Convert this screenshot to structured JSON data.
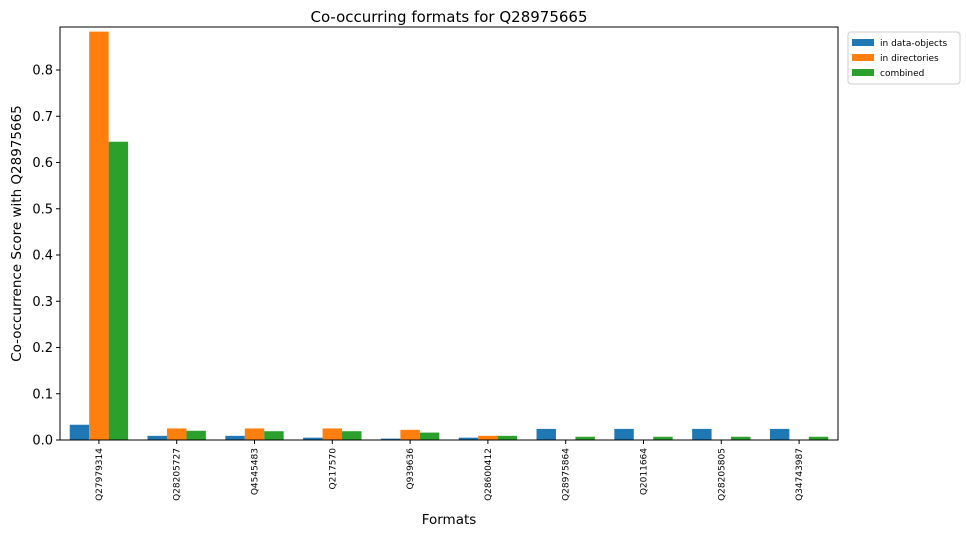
{
  "chart_data": {
    "type": "bar",
    "title": "Co-occurring formats for Q28975665",
    "xlabel": "Formats",
    "ylabel": "Co-occurrence Score with Q28975665",
    "ylim": [
      0,
      0.893
    ],
    "yticks": [
      0.0,
      0.1,
      0.2,
      0.3,
      0.4,
      0.5,
      0.6,
      0.7,
      0.8
    ],
    "ytick_labels": [
      "0.0",
      "0.1",
      "0.2",
      "0.3",
      "0.4",
      "0.5",
      "0.6",
      "0.7",
      "0.8"
    ],
    "grid": false,
    "legend_position": "outside-top-right",
    "categories": [
      "Q27979314",
      "Q28205727",
      "Q4545483",
      "Q217570",
      "Q939636",
      "Q28600412",
      "Q28975864",
      "Q2011664",
      "Q28205805",
      "Q34743987"
    ],
    "series": [
      {
        "name": "in data-objects",
        "color": "#1f77b4",
        "values": [
          0.033,
          0.009,
          0.009,
          0.005,
          0.003,
          0.005,
          0.024,
          0.024,
          0.024,
          0.024
        ]
      },
      {
        "name": "in directories",
        "color": "#ff7f0e",
        "values": [
          0.883,
          0.025,
          0.025,
          0.025,
          0.022,
          0.009,
          0.0,
          0.0,
          0.0,
          0.0
        ]
      },
      {
        "name": "combined",
        "color": "#2ca02c",
        "values": [
          0.645,
          0.02,
          0.019,
          0.019,
          0.016,
          0.009,
          0.007,
          0.007,
          0.007,
          0.007
        ]
      }
    ]
  }
}
